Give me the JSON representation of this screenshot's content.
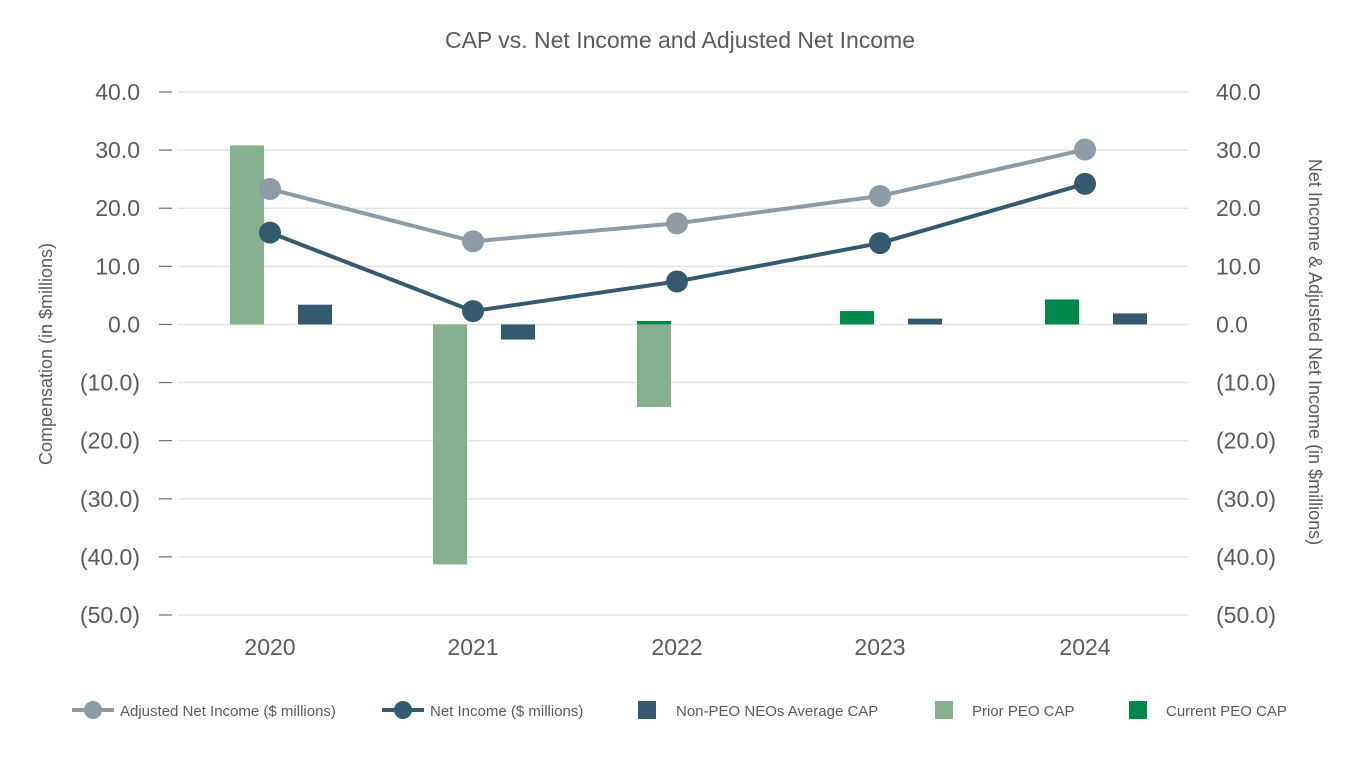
{
  "chart_data": {
    "type": "bar",
    "title": "CAP vs. Net Income and Adjusted Net Income",
    "ylabel_left": "Compensation (in $millions)",
    "ylabel_right": "Net Income & Adjusted Net Income (in $millions)",
    "ylim": [
      -50,
      40
    ],
    "y_ticks": [
      40,
      30,
      20,
      10,
      0,
      -10,
      -20,
      -30,
      -40,
      -50
    ],
    "y_tick_labels": [
      "40.0",
      "30.0",
      "20.0",
      "10.0",
      "0.0",
      "(10.0)",
      "(20.0)",
      "(30.0)",
      "(40.0)",
      "(50.0)"
    ],
    "categories": [
      "2020",
      "2021",
      "2022",
      "2023",
      "2024"
    ],
    "grid": true,
    "legend_position": "bottom",
    "bar_series": [
      {
        "name": "Prior PEO CAP",
        "color": "#86b08e",
        "slot": 0,
        "values": [
          30.8,
          -41.3,
          -14.2,
          null,
          null
        ]
      },
      {
        "name": "Current PEO CAP",
        "color": "#00884a",
        "slot": 0,
        "values": [
          null,
          null,
          0.6,
          2.3,
          4.3
        ]
      },
      {
        "name": "Non-PEO NEOs Average CAP",
        "color": "#355a6e",
        "slot": 1,
        "values": [
          3.4,
          -2.6,
          null,
          1.0,
          1.9
        ]
      }
    ],
    "line_series": [
      {
        "name": "Adjusted Net Income ($ millions)",
        "color": "#8d9ba6",
        "values": [
          23.3,
          14.3,
          17.4,
          22.1,
          30.1
        ]
      },
      {
        "name": "Net Income ($ millions)",
        "color": "#355a6e",
        "values": [
          15.8,
          2.3,
          7.4,
          14.0,
          24.2
        ]
      }
    ],
    "legend": [
      {
        "label": "Adjusted Net Income ($ millions)",
        "kind": "line",
        "color": "#8d9ba6"
      },
      {
        "label": "Net Income ($ millions)",
        "kind": "line",
        "color": "#355a6e"
      },
      {
        "label": "Non-PEO NEOs Average CAP",
        "kind": "box",
        "color": "#355a6e"
      },
      {
        "label": "Prior PEO CAP",
        "kind": "box",
        "color": "#86b08e"
      },
      {
        "label": "Current PEO CAP",
        "kind": "box",
        "color": "#00884a"
      }
    ]
  }
}
